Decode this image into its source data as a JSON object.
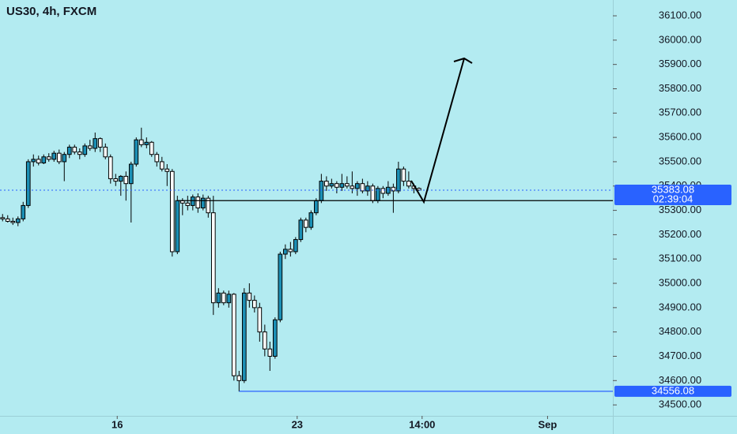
{
  "chart_data": {
    "type": "candlestick",
    "title": "US30, 4h, FXCM",
    "x": [
      0,
      1,
      2,
      3,
      4,
      5,
      6,
      7,
      8,
      9,
      10,
      11,
      12,
      13,
      14,
      15,
      16,
      17,
      18,
      19,
      20,
      21,
      22,
      23,
      24,
      25,
      26,
      27,
      28,
      29,
      30,
      31,
      32,
      33,
      34,
      35,
      36,
      37,
      38,
      39,
      40,
      41,
      42,
      43,
      44,
      45,
      46,
      47,
      48,
      49,
      50,
      51,
      52,
      53,
      54,
      55,
      56,
      57,
      58,
      59,
      60,
      61,
      62,
      63,
      64,
      65,
      66,
      67,
      68,
      69,
      70,
      71,
      72,
      73,
      74,
      75,
      76,
      77,
      78,
      79,
      80,
      81
    ],
    "open": [
      35270,
      35265,
      35255,
      35250,
      35265,
      35320,
      35500,
      35510,
      35495,
      35520,
      35510,
      35535,
      35500,
      35530,
      35560,
      35540,
      35530,
      35565,
      35555,
      35595,
      35560,
      35520,
      35430,
      35420,
      35440,
      35410,
      35490,
      35590,
      35570,
      35580,
      35530,
      35500,
      35470,
      35460,
      35130,
      35340,
      35330,
      35320,
      35355,
      35310,
      35350,
      35290,
      34920,
      34960,
      34920,
      34955,
      34620,
      34600,
      34960,
      34930,
      34900,
      34800,
      34730,
      34700,
      34850,
      35120,
      35140,
      35130,
      35180,
      35260,
      35230,
      35290,
      35340,
      35420,
      35400,
      35410,
      35395,
      35410,
      35400,
      35390,
      35410,
      35380,
      35400,
      35340,
      35390,
      35370,
      35395,
      35380,
      35470,
      35420,
      35400,
      35390
    ],
    "high": [
      35285,
      35280,
      35270,
      35275,
      35335,
      35510,
      35530,
      35525,
      35530,
      35535,
      35545,
      35550,
      35540,
      35570,
      35570,
      35555,
      35575,
      35590,
      35620,
      35600,
      35575,
      35530,
      35450,
      35445,
      35460,
      35500,
      35600,
      35640,
      35600,
      35585,
      35540,
      35520,
      35490,
      35470,
      35360,
      35350,
      35360,
      35365,
      35370,
      35365,
      35360,
      35360,
      34980,
      34970,
      34970,
      34960,
      34640,
      34980,
      35000,
      34950,
      34920,
      34830,
      34760,
      34860,
      35130,
      35160,
      35170,
      35190,
      35270,
      35270,
      35300,
      35350,
      35450,
      35440,
      35430,
      35420,
      35450,
      35440,
      35460,
      35420,
      35430,
      35420,
      35410,
      35400,
      35400,
      35420,
      35410,
      35500,
      35480,
      35460,
      35410,
      35395
    ],
    "low": [
      35255,
      35250,
      35240,
      35235,
      35255,
      35310,
      35480,
      35485,
      35490,
      35500,
      35500,
      35490,
      35420,
      35515,
      35530,
      35510,
      35520,
      35545,
      35540,
      35540,
      35510,
      35410,
      35400,
      35360,
      35340,
      35250,
      35480,
      35560,
      35555,
      35520,
      35480,
      35460,
      35400,
      35110,
      35120,
      35280,
      35300,
      35300,
      35290,
      35300,
      35270,
      34870,
      34900,
      34910,
      34900,
      34600,
      34555,
      34590,
      34900,
      34880,
      34760,
      34700,
      34640,
      34690,
      34840,
      35100,
      35110,
      35120,
      35170,
      35210,
      35220,
      35280,
      35330,
      35380,
      35390,
      35370,
      35380,
      35390,
      35370,
      35360,
      35370,
      35360,
      35330,
      35330,
      35350,
      35360,
      35290,
      35370,
      35400,
      35390,
      35370,
      35380
    ],
    "close": [
      35265,
      35255,
      35250,
      35265,
      35320,
      35500,
      35510,
      35495,
      35520,
      35510,
      35535,
      35500,
      35530,
      35560,
      35540,
      35530,
      35565,
      35555,
      35595,
      35560,
      35520,
      35430,
      35420,
      35440,
      35410,
      35490,
      35590,
      35570,
      35580,
      35530,
      35500,
      35470,
      35460,
      35130,
      35340,
      35330,
      35320,
      35355,
      35310,
      35350,
      35290,
      34920,
      34960,
      34920,
      34955,
      34620,
      34600,
      34960,
      34930,
      34900,
      34800,
      34730,
      34700,
      34850,
      35120,
      35140,
      35130,
      35180,
      35260,
      35230,
      35290,
      35340,
      35420,
      35400,
      35410,
      35395,
      35410,
      35400,
      35390,
      35410,
      35380,
      35400,
      35340,
      35390,
      35370,
      35395,
      35380,
      35470,
      35420,
      35400,
      35390,
      35383.08
    ],
    "up_color": "#1b8fb5",
    "down_color": "#ffffff",
    "xlim": [
      -0.5,
      118.7
    ],
    "xticks": [
      {
        "value": 22.3,
        "label": "16"
      },
      {
        "value": 57.3,
        "label": "23"
      },
      {
        "value": 81.6,
        "label": "14:00"
      },
      {
        "value": 106.0,
        "label": "Sep"
      }
    ],
    "ylim": [
      34455,
      36165
    ],
    "yticks": [
      {
        "value": 34500,
        "label": "34500.00"
      },
      {
        "value": 34600,
        "label": "34600.00"
      },
      {
        "value": 34700,
        "label": "34700.00"
      },
      {
        "value": 34800,
        "label": "34800.00"
      },
      {
        "value": 34900,
        "label": "34900.00"
      },
      {
        "value": 35000,
        "label": "35000.00"
      },
      {
        "value": 35100,
        "label": "35100.00"
      },
      {
        "value": 35200,
        "label": "35200.00"
      },
      {
        "value": 35300,
        "label": "35300.00"
      },
      {
        "value": 35400,
        "label": "35400.00"
      },
      {
        "value": 35500,
        "label": "35500.00"
      },
      {
        "value": 35600,
        "label": "35600.00"
      },
      {
        "value": 35700,
        "label": "35700.00"
      },
      {
        "value": 35800,
        "label": "35800.00"
      },
      {
        "value": 35900,
        "label": "35900.00"
      },
      {
        "value": 36000,
        "label": "36000.00"
      },
      {
        "value": 36100,
        "label": "36100.00"
      }
    ],
    "current_price": 35383.08,
    "countdown": "02:39:04",
    "low_marker": 34556.08,
    "level": 35340
  }
}
